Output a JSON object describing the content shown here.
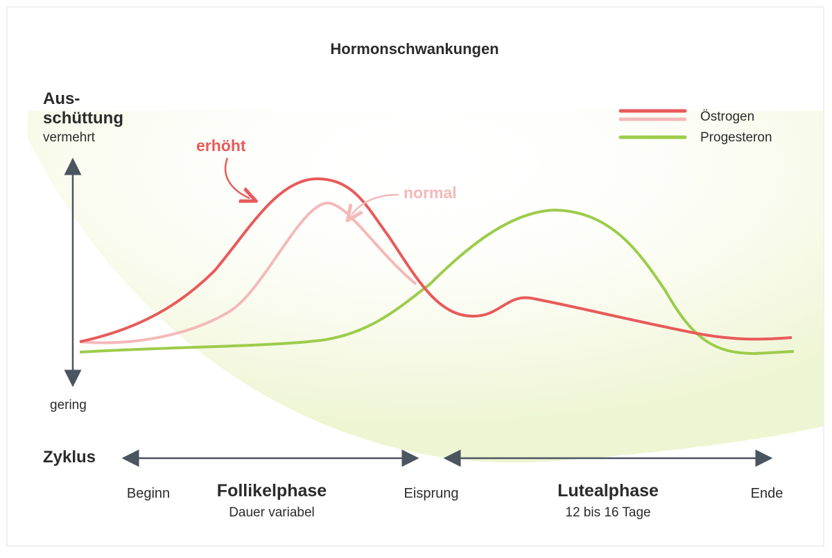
{
  "title": "Hormonschwankungen",
  "y_axis": {
    "label_line1": "Aus-",
    "label_line2": "schüttung",
    "high": "vermehrt",
    "low": "gering"
  },
  "legend": {
    "items": [
      {
        "label": "Östrogen"
      },
      {
        "label": "Progesteron"
      }
    ]
  },
  "annotations": {
    "raised": "erhöht",
    "normal": "normal"
  },
  "cycle": {
    "label": "Zyklus",
    "markers": {
      "start": "Beginn",
      "ovulation": "Eisprung",
      "end": "Ende"
    },
    "phases": [
      {
        "name": "Follikelphase",
        "detail": "Dauer variabel"
      },
      {
        "name": "Lutealphase",
        "detail": "12 bis 16 Tage"
      }
    ]
  }
}
